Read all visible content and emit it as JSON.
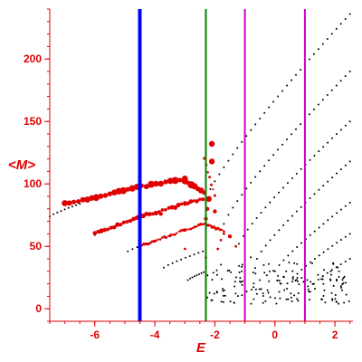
{
  "chart_data": {
    "type": "scatter",
    "title": "",
    "xlabel": "E",
    "ylabel": "<M>",
    "xlim": [
      -7.5,
      2.6
    ],
    "ylim": [
      -10,
      240
    ],
    "x_ticks": [
      -6,
      -4,
      -2,
      0,
      2
    ],
    "y_ticks": [
      0,
      50,
      100,
      150,
      200
    ],
    "grid": false,
    "colors": {
      "axis": "#e00000",
      "black_points": "#000000",
      "red_points": "#e00000",
      "blue_line": "#0000ff",
      "green_line": "#008000",
      "magenta_line": "#cc00cc"
    },
    "vertical_lines": [
      {
        "x": -4.5,
        "color": "#0000ff"
      },
      {
        "x": -2.3,
        "color": "#008000"
      },
      {
        "x": -1.0,
        "color": "#cc00cc"
      },
      {
        "x": 1.0,
        "color": "#cc00cc"
      }
    ],
    "black_branches": [
      {
        "x0": -7.5,
        "x1": -6.5,
        "y0": 74,
        "y1": 84
      },
      {
        "x0": -6.0,
        "x1": -4.5,
        "y0": 59,
        "y1": 73
      },
      {
        "x0": -4.9,
        "x1": -3.5,
        "y0": 46,
        "y1": 58
      },
      {
        "x0": -3.7,
        "x1": -2.4,
        "y0": 33,
        "y1": 46
      },
      {
        "x0": -2.9,
        "x1": -2.3,
        "y0": 23,
        "y1": 30
      },
      {
        "x0": -2.3,
        "x1": 2.5,
        "y0": 88,
        "y1": 236
      },
      {
        "x0": -1.7,
        "x1": 2.5,
        "y0": 68,
        "y1": 190
      },
      {
        "x0": -1.2,
        "x1": 2.5,
        "y0": 52,
        "y1": 150
      },
      {
        "x0": -0.6,
        "x1": 2.5,
        "y0": 40,
        "y1": 118
      },
      {
        "x0": 0.0,
        "x1": 2.5,
        "y0": 30,
        "y1": 85
      },
      {
        "x0": 0.6,
        "x1": 2.5,
        "y0": 24,
        "y1": 60
      },
      {
        "x0": 1.3,
        "x1": 2.5,
        "y0": 20,
        "y1": 40
      }
    ],
    "red_branches": [
      {
        "x0": -7.0,
        "x1": -4.6,
        "y0": 84,
        "y1": 97,
        "size": "large"
      },
      {
        "x0": -4.6,
        "x1": -3.0,
        "y0": 97,
        "y1": 104,
        "size": "large"
      },
      {
        "x0": -3.0,
        "x1": -2.35,
        "y0": 102,
        "y1": 93,
        "size": "large"
      },
      {
        "x0": -6.0,
        "x1": -4.6,
        "y0": 60,
        "y1": 73,
        "size": "medium"
      },
      {
        "x0": -4.6,
        "x1": -3.0,
        "y0": 73,
        "y1": 84,
        "size": "medium"
      },
      {
        "x0": -3.0,
        "x1": -2.4,
        "y0": 84,
        "y1": 88,
        "size": "medium"
      },
      {
        "x0": -4.5,
        "x1": -3.0,
        "y0": 50,
        "y1": 63,
        "size": "small"
      },
      {
        "x0": -3.0,
        "x1": -2.4,
        "y0": 63,
        "y1": 68,
        "size": "small"
      },
      {
        "x0": -2.35,
        "x1": -1.7,
        "y0": 68,
        "y1": 62,
        "size": "small"
      },
      {
        "x0": -2.35,
        "x1": -2.0,
        "y0": 120,
        "y1": 90,
        "size": "small"
      }
    ],
    "red_points": [
      {
        "x": -2.1,
        "y": 132,
        "size": "large"
      },
      {
        "x": -2.1,
        "y": 118,
        "size": "large"
      },
      {
        "x": -2.2,
        "y": 88,
        "size": "large"
      },
      {
        "x": -2.25,
        "y": 80,
        "size": "medium"
      },
      {
        "x": -2.3,
        "y": 72,
        "size": "medium"
      },
      {
        "x": -2.0,
        "y": 78,
        "size": "medium"
      },
      {
        "x": -1.5,
        "y": 58,
        "size": "medium"
      },
      {
        "x": -1.3,
        "y": 50,
        "size": "small"
      },
      {
        "x": -3.8,
        "y": 76,
        "size": "medium"
      },
      {
        "x": -3.0,
        "y": 48,
        "size": "small"
      },
      {
        "x": -2.3,
        "y": 41,
        "size": "small"
      },
      {
        "x": -1.8,
        "y": 55,
        "size": "small"
      },
      {
        "x": -1.9,
        "y": 48,
        "size": "small"
      },
      {
        "x": -1.7,
        "y": 60,
        "size": "small"
      }
    ]
  }
}
